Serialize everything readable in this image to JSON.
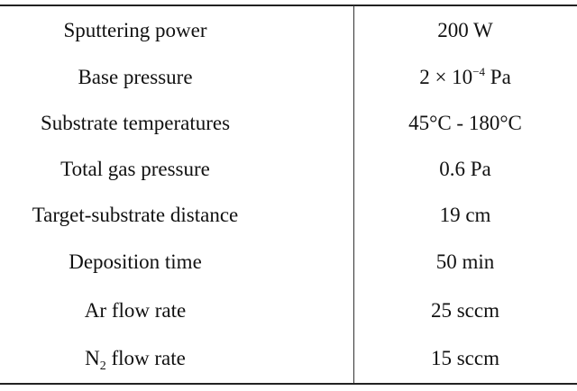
{
  "table": {
    "rows": [
      {
        "param": "Sputtering power",
        "value": "200 W"
      },
      {
        "param": "Base pressure",
        "value_parts": {
          "prefix": "2 × 10",
          "exponent": "−4",
          "suffix": " Pa"
        }
      },
      {
        "param": "Substrate temperatures",
        "value": "45°C - 180°C"
      },
      {
        "param": "Total gas pressure",
        "value": "0.6 Pa"
      },
      {
        "param": "Target-substrate distance",
        "value": "19 cm"
      },
      {
        "param": "Deposition time",
        "value": "50 min"
      },
      {
        "param": "Ar flow rate",
        "value": "25 sccm"
      },
      {
        "param_parts": {
          "prefix": "N",
          "subscript": "2",
          "suffix": " flow rate"
        },
        "value": "15 sccm"
      }
    ]
  }
}
